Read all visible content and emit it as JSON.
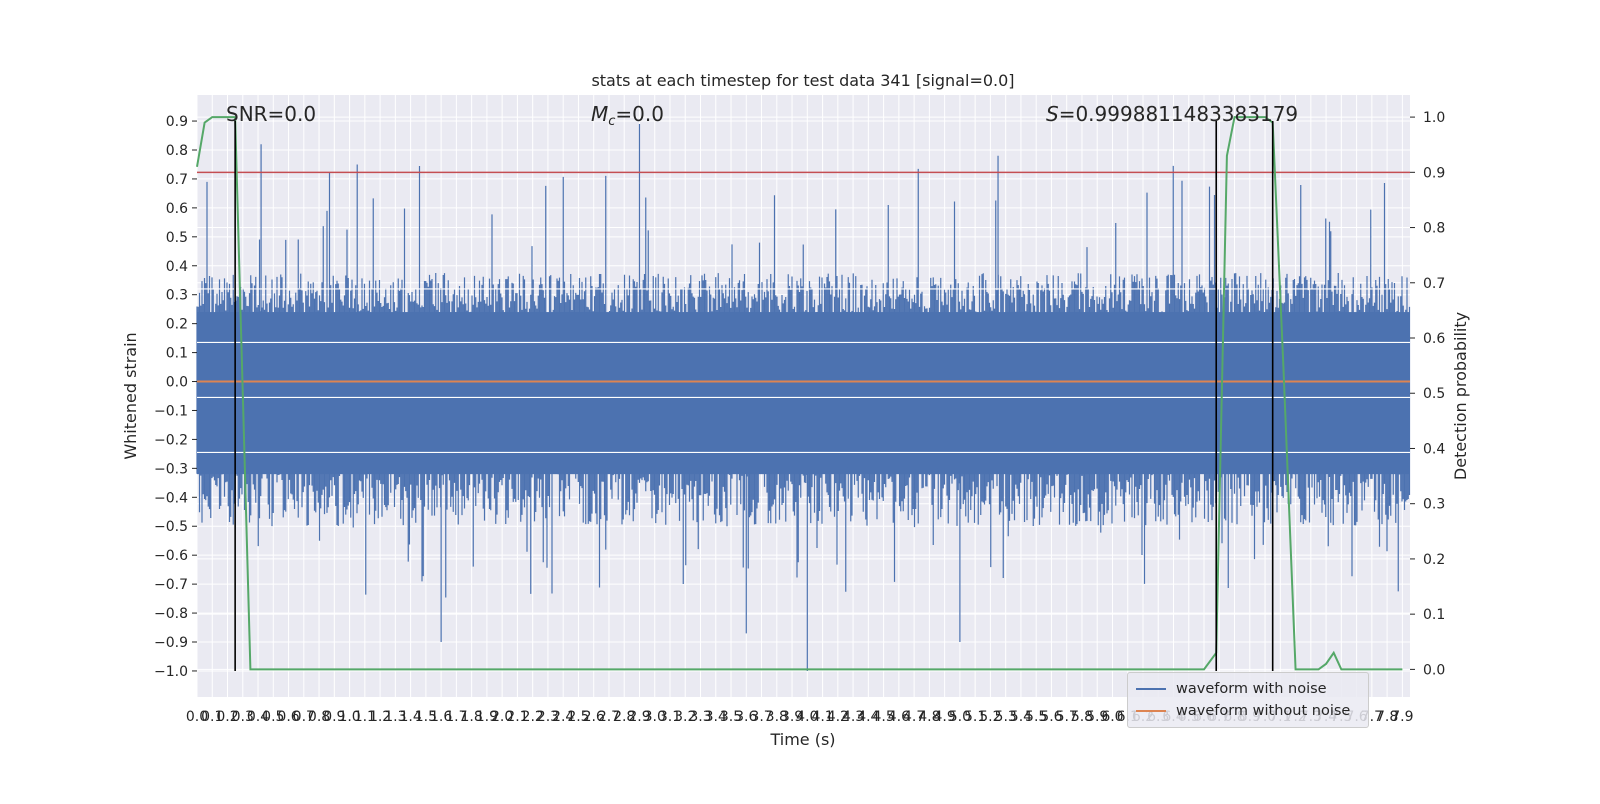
{
  "chart_data": {
    "type": "line",
    "title": "stats at each timestep for test data 341 [signal=0.0]",
    "xlabel": "Time (s)",
    "ylabel": "Whitened strain",
    "y2label": "Detection probability",
    "xlim": [
      0.0,
      7.95
    ],
    "ylim": [
      -1.09,
      0.99
    ],
    "y2lim": [
      -0.05,
      1.04
    ],
    "x_ticks": [
      "0.0",
      "0.1",
      "0.2",
      "0.3",
      "0.4",
      "0.5",
      "0.6",
      "0.7",
      "0.8",
      "0.9",
      "1.0",
      "1.1",
      "1.2",
      "1.3",
      "1.4",
      "1.5",
      "1.6",
      "1.7",
      "1.8",
      "1.9",
      "2.0",
      "2.1",
      "2.2",
      "2.3",
      "2.4",
      "2.5",
      "2.6",
      "2.7",
      "2.8",
      "2.9",
      "3.0",
      "3.1",
      "3.2",
      "3.3",
      "3.4",
      "3.5",
      "3.6",
      "3.7",
      "3.8",
      "3.9",
      "4.0",
      "4.1",
      "4.2",
      "4.3",
      "4.4",
      "4.5",
      "4.6",
      "4.7",
      "4.8",
      "4.9",
      "5.0",
      "5.1",
      "5.2",
      "5.3",
      "5.4",
      "5.5",
      "5.6",
      "5.7",
      "5.8",
      "5.9",
      "6.0",
      "6.1",
      "6.2",
      "6.3",
      "6.4",
      "6.5",
      "6.6",
      "6.7",
      "6.8",
      "6.9",
      "7.0",
      "7.1",
      "7.2",
      "7.3",
      "7.4",
      "7.5",
      "7.6",
      "7.7",
      "7.8",
      "7.9"
    ],
    "y_ticks": [
      "0.9",
      "0.8",
      "0.7",
      "0.6",
      "0.5",
      "0.4",
      "0.3",
      "0.2",
      "0.1",
      "0.0",
      "−0.1",
      "−0.2",
      "−0.3",
      "−0.4",
      "−0.5",
      "−0.6",
      "−0.7",
      "−0.8",
      "−0.9",
      "−1.0"
    ],
    "y2_ticks": [
      "1.0",
      "0.9",
      "0.8",
      "0.7",
      "0.6",
      "0.5",
      "0.4",
      "0.3",
      "0.2",
      "0.1",
      "0.0"
    ],
    "annotations": {
      "snr": "SNR=0.0",
      "mc_symbol": "M",
      "mc_sub": "c",
      "mc_rest": "=0.0",
      "s_symbol": "S",
      "s_rest": "=0.9998811483383179"
    },
    "series": [
      {
        "name": "waveform with noise",
        "color": "#4c72b0",
        "envelope": {
          "upper_typical": 0.3,
          "lower_typical": -0.4,
          "max_peak": 0.89,
          "min_peak": -1.0
        }
      },
      {
        "name": "waveform without noise",
        "color": "#dd8452",
        "value": 0.0
      }
    ],
    "detection_probability": {
      "color": "#55a868",
      "x": [
        0.0,
        0.05,
        0.1,
        0.2,
        0.25,
        0.3,
        0.35,
        0.4,
        1.0,
        2.0,
        3.0,
        4.0,
        5.0,
        6.0,
        6.6,
        6.68,
        6.75,
        6.8,
        6.9,
        7.0,
        7.05,
        7.12,
        7.2,
        7.3,
        7.35,
        7.4,
        7.45,
        7.5,
        7.55,
        7.6,
        7.7,
        7.8,
        7.9
      ],
      "y": [
        0.91,
        0.99,
        1.0,
        1.0,
        1.0,
        0.5,
        0.0,
        0.0,
        0.0,
        0.0,
        0.0,
        0.0,
        0.0,
        0.0,
        0.0,
        0.03,
        0.93,
        1.0,
        1.0,
        1.0,
        0.99,
        0.55,
        0.0,
        0.0,
        0.0,
        0.01,
        0.03,
        0.0,
        0.0,
        0.0,
        0.0,
        0.0,
        0.0
      ]
    },
    "threshold": {
      "color": "#c44e52",
      "y2_value": 0.9
    },
    "markers_x": [
      0.25,
      6.68,
      7.05
    ],
    "marker_color": "#000000",
    "legend_position": "lower-right",
    "grid": true,
    "background": "#eaeaf2"
  }
}
